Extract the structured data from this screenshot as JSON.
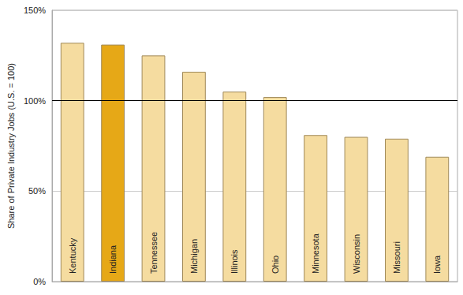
{
  "chart_data": {
    "type": "bar",
    "y_label": "Share of Private Industry Jobs (U.S. = 100)",
    "categories": [
      "Kentucky",
      "Indiana",
      "Tennessee",
      "Michigan",
      "Illinois",
      "Ohio",
      "Minnesota",
      "Wisconsin",
      "Missouri",
      "Iowa"
    ],
    "values": [
      132,
      131,
      125,
      116,
      105,
      102,
      81,
      80,
      79,
      69
    ],
    "colors": [
      "#f5dca0",
      "#e6a817",
      "#f5dca0",
      "#f5dca0",
      "#f5dca0",
      "#f5dca0",
      "#f5dca0",
      "#f5dca0",
      "#f5dca0",
      "#f5dca0"
    ],
    "reference_line": 100,
    "ylim": [
      0,
      150
    ],
    "yticks": [
      {
        "value": 0,
        "label": "0%"
      },
      {
        "value": 50,
        "label": "50%"
      },
      {
        "value": 100,
        "label": "100%"
      },
      {
        "value": 150,
        "label": "150%"
      }
    ],
    "grid": true
  }
}
